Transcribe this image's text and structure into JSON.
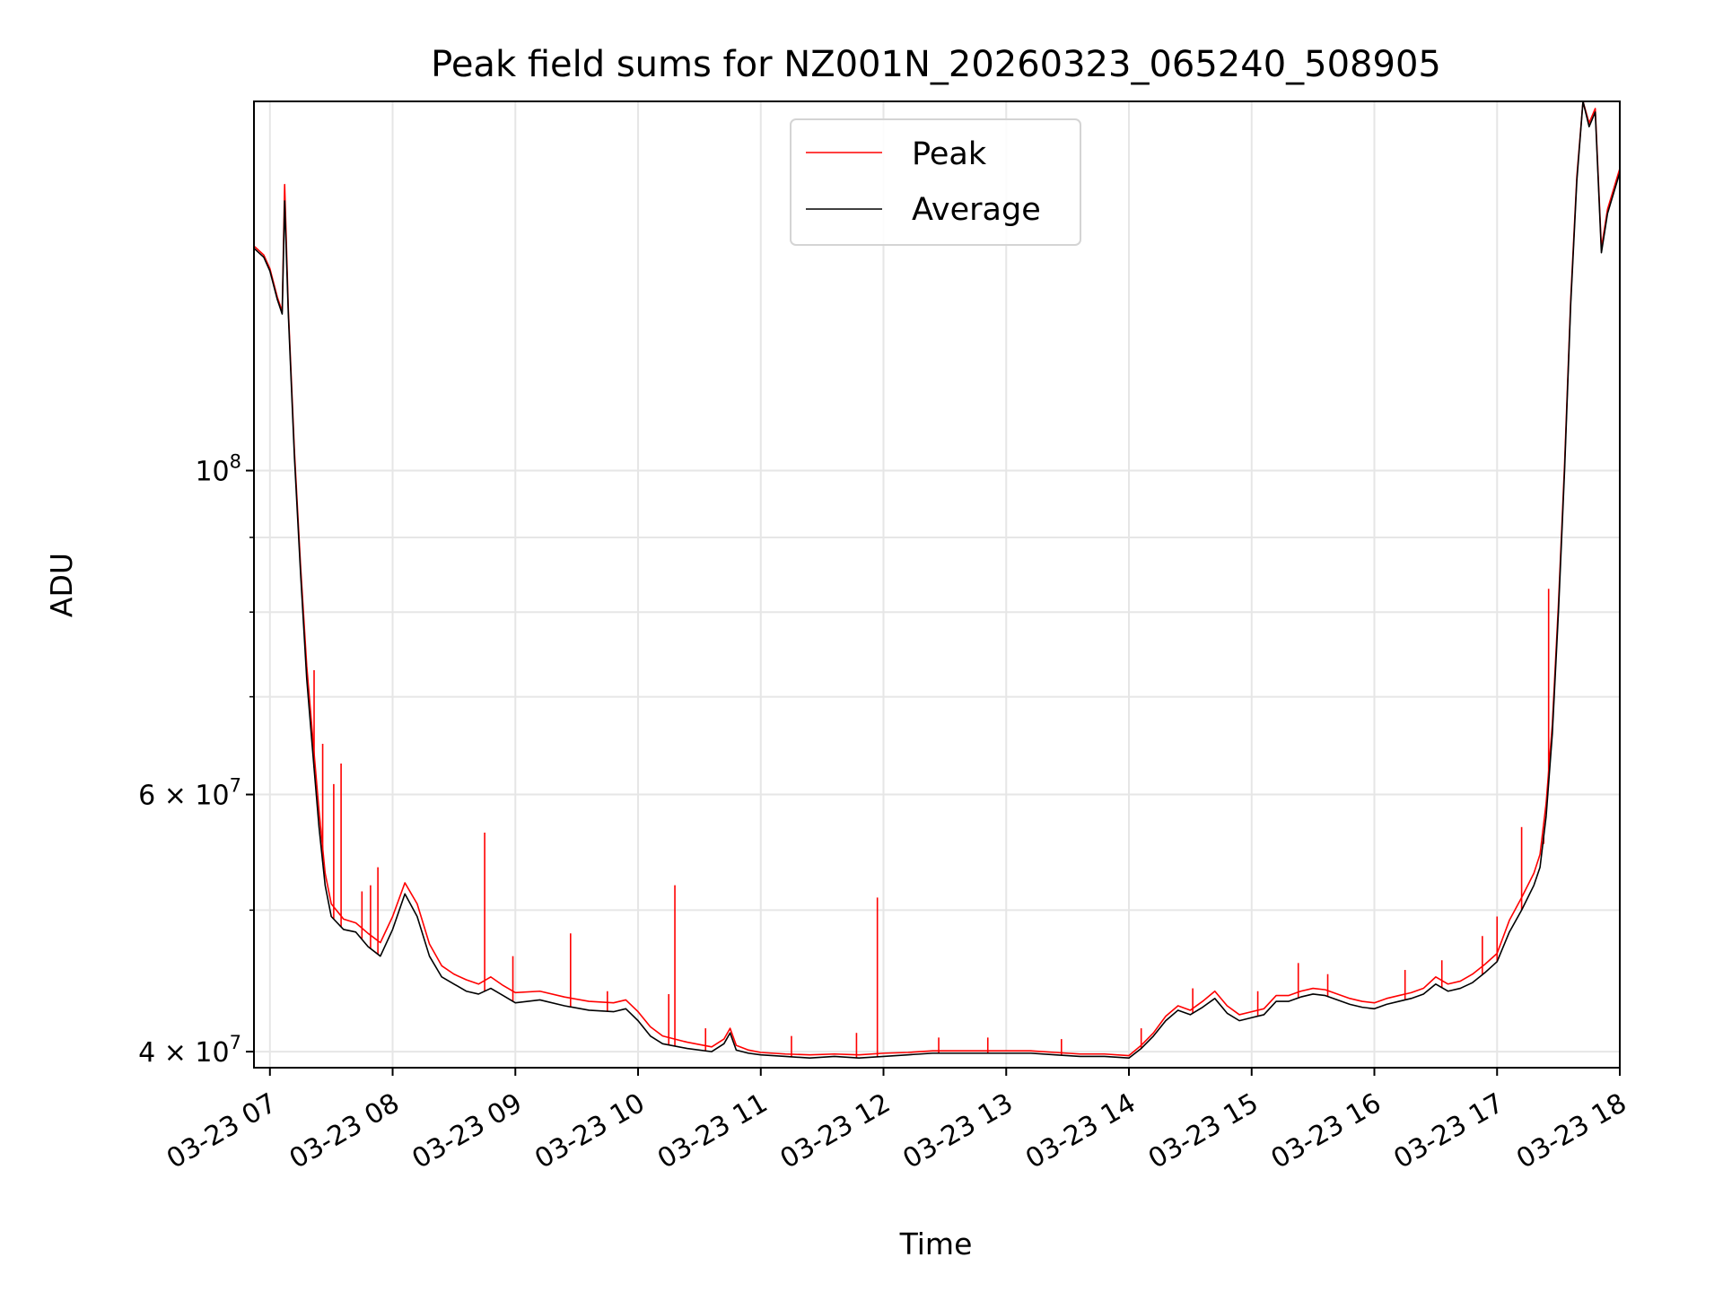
{
  "chart_data": {
    "type": "line",
    "title": "Peak field sums for NZ001N_20260323_065240_508905",
    "xlabel": "Time",
    "ylabel": "ADU",
    "yscale": "log",
    "xlim": [
      6.87,
      18.0
    ],
    "ylim": [
      39000000,
      179000000
    ],
    "grid": true,
    "legend_location": "upper center",
    "x_ticks": [
      {
        "value": 7,
        "label": "03-23 07"
      },
      {
        "value": 8,
        "label": "03-23 08"
      },
      {
        "value": 9,
        "label": "03-23 09"
      },
      {
        "value": 10,
        "label": "03-23 10"
      },
      {
        "value": 11,
        "label": "03-23 11"
      },
      {
        "value": 12,
        "label": "03-23 12"
      },
      {
        "value": 13,
        "label": "03-23 13"
      },
      {
        "value": 14,
        "label": "03-23 14"
      },
      {
        "value": 15,
        "label": "03-23 15"
      },
      {
        "value": 16,
        "label": "03-23 16"
      },
      {
        "value": 17,
        "label": "03-23 17"
      },
      {
        "value": 18,
        "label": "03-23 18"
      }
    ],
    "y_major_ticks": [
      {
        "value": 40000000,
        "mantissa": "4",
        "exponent": "7"
      },
      {
        "value": 60000000,
        "mantissa": "6",
        "exponent": "7"
      },
      {
        "value": 100000000,
        "mantissa": "10",
        "exponent": "8"
      }
    ],
    "y_minor_ticks": [
      50000000,
      70000000,
      80000000,
      90000000
    ],
    "x_unit": "hours (UTC) on 2026-03-23",
    "series": [
      {
        "name": "Average",
        "color": "#000000",
        "x": [
          6.87,
          6.95,
          7.0,
          7.06,
          7.1,
          7.12,
          7.15,
          7.2,
          7.25,
          7.3,
          7.35,
          7.4,
          7.45,
          7.5,
          7.6,
          7.7,
          7.8,
          7.9,
          8.0,
          8.1,
          8.2,
          8.3,
          8.4,
          8.5,
          8.6,
          8.7,
          8.8,
          8.9,
          9.0,
          9.2,
          9.4,
          9.6,
          9.8,
          9.9,
          10.0,
          10.1,
          10.2,
          10.4,
          10.6,
          10.7,
          10.75,
          10.8,
          10.9,
          11.0,
          11.2,
          11.4,
          11.6,
          11.8,
          12.0,
          12.2,
          12.4,
          12.6,
          12.8,
          13.0,
          13.2,
          13.4,
          13.6,
          13.8,
          14.0,
          14.1,
          14.2,
          14.3,
          14.4,
          14.5,
          14.6,
          14.7,
          14.8,
          14.9,
          15.0,
          15.1,
          15.2,
          15.3,
          15.4,
          15.5,
          15.6,
          15.7,
          15.8,
          15.9,
          16.0,
          16.1,
          16.2,
          16.3,
          16.4,
          16.5,
          16.6,
          16.7,
          16.8,
          16.9,
          17.0,
          17.1,
          17.2,
          17.3,
          17.35,
          17.4,
          17.45,
          17.5,
          17.55,
          17.6,
          17.65,
          17.7,
          17.75,
          17.8,
          17.85,
          17.9,
          18.0
        ],
        "values": [
          142000000,
          140000000,
          137000000,
          131000000,
          128000000,
          153000000,
          128000000,
          102000000,
          85000000,
          72000000,
          64000000,
          57000000,
          52000000,
          49500000,
          48500000,
          48300000,
          47200000,
          46500000,
          48500000,
          51300000,
          49500000,
          46500000,
          45000000,
          44500000,
          44000000,
          43800000,
          44200000,
          43700000,
          43200000,
          43400000,
          43000000,
          42700000,
          42600000,
          42800000,
          42000000,
          41000000,
          40500000,
          40200000,
          40000000,
          40500000,
          41200000,
          40100000,
          39900000,
          39800000,
          39700000,
          39600000,
          39700000,
          39600000,
          39700000,
          39800000,
          39900000,
          39900000,
          39900000,
          39900000,
          39900000,
          39800000,
          39700000,
          39700000,
          39600000,
          40200000,
          41000000,
          42000000,
          42700000,
          42400000,
          42900000,
          43500000,
          42500000,
          42000000,
          42200000,
          42400000,
          43300000,
          43300000,
          43600000,
          43800000,
          43700000,
          43400000,
          43100000,
          42900000,
          42800000,
          43100000,
          43300000,
          43500000,
          43800000,
          44500000,
          44000000,
          44200000,
          44600000,
          45300000,
          46100000,
          48300000,
          50000000,
          52000000,
          53500000,
          58000000,
          66000000,
          80000000,
          100000000,
          130000000,
          158000000,
          180000000,
          172000000,
          176000000,
          141000000,
          150000000,
          160000000
        ]
      },
      {
        "name": "Peak",
        "color": "#ff0000",
        "x": [
          6.87,
          6.95,
          7.0,
          7.06,
          7.1,
          7.12,
          7.15,
          7.2,
          7.25,
          7.3,
          7.35,
          7.4,
          7.45,
          7.5,
          7.6,
          7.7,
          7.8,
          7.9,
          8.0,
          8.1,
          8.2,
          8.3,
          8.4,
          8.5,
          8.6,
          8.7,
          8.8,
          8.9,
          9.0,
          9.2,
          9.4,
          9.6,
          9.8,
          9.9,
          10.0,
          10.1,
          10.2,
          10.4,
          10.6,
          10.7,
          10.75,
          10.8,
          10.9,
          11.0,
          11.2,
          11.4,
          11.6,
          11.8,
          12.0,
          12.2,
          12.4,
          12.6,
          12.8,
          13.0,
          13.2,
          13.4,
          13.6,
          13.8,
          14.0,
          14.1,
          14.2,
          14.3,
          14.4,
          14.5,
          14.6,
          14.7,
          14.8,
          14.9,
          15.0,
          15.1,
          15.2,
          15.3,
          15.4,
          15.5,
          15.6,
          15.7,
          15.8,
          15.9,
          16.0,
          16.1,
          16.2,
          16.3,
          16.4,
          16.5,
          16.6,
          16.7,
          16.8,
          16.9,
          17.0,
          17.1,
          17.2,
          17.3,
          17.35,
          17.4,
          17.45,
          17.5,
          17.55,
          17.6,
          17.65,
          17.7,
          17.75,
          17.8,
          17.85,
          17.9,
          18.0
        ],
        "values": [
          142500000,
          140500000,
          137500000,
          131500000,
          128500000,
          157000000,
          129000000,
          103000000,
          86000000,
          73500000,
          65500000,
          58500000,
          53000000,
          50500000,
          49300000,
          49000000,
          48200000,
          47500000,
          49500000,
          52200000,
          50500000,
          47400000,
          45800000,
          45200000,
          44800000,
          44500000,
          45000000,
          44400000,
          43900000,
          44000000,
          43600000,
          43300000,
          43200000,
          43400000,
          42600000,
          41600000,
          41000000,
          40600000,
          40300000,
          40800000,
          41500000,
          40400000,
          40100000,
          39950000,
          39850000,
          39800000,
          39850000,
          39800000,
          39900000,
          39950000,
          40050000,
          40050000,
          40050000,
          40050000,
          40050000,
          39950000,
          39850000,
          39850000,
          39750000,
          40400000,
          41200000,
          42300000,
          43000000,
          42700000,
          43300000,
          44000000,
          43000000,
          42400000,
          42600000,
          42800000,
          43700000,
          43700000,
          44000000,
          44200000,
          44100000,
          43800000,
          43500000,
          43300000,
          43200000,
          43500000,
          43700000,
          43900000,
          44200000,
          45000000,
          44500000,
          44700000,
          45200000,
          45900000,
          46700000,
          49200000,
          51000000,
          53000000,
          54600000,
          59200000,
          67000000,
          81000000,
          101000000,
          131000000,
          159000000,
          181000000,
          173000000,
          177000000,
          142000000,
          151000000,
          161000000
        ],
        "spikes": [
          {
            "x": 7.36,
            "value": 73000000
          },
          {
            "x": 7.43,
            "value": 65000000
          },
          {
            "x": 7.52,
            "value": 61000000
          },
          {
            "x": 7.58,
            "value": 63000000
          },
          {
            "x": 7.75,
            "value": 51500000
          },
          {
            "x": 7.82,
            "value": 52000000
          },
          {
            "x": 7.88,
            "value": 53500000
          },
          {
            "x": 8.75,
            "value": 56500000
          },
          {
            "x": 8.98,
            "value": 46500000
          },
          {
            "x": 9.45,
            "value": 48200000
          },
          {
            "x": 9.75,
            "value": 44000000
          },
          {
            "x": 10.25,
            "value": 43800000
          },
          {
            "x": 10.3,
            "value": 52000000
          },
          {
            "x": 10.55,
            "value": 41500000
          },
          {
            "x": 11.25,
            "value": 41000000
          },
          {
            "x": 11.78,
            "value": 41200000
          },
          {
            "x": 11.95,
            "value": 51000000
          },
          {
            "x": 12.45,
            "value": 40900000
          },
          {
            "x": 12.85,
            "value": 40900000
          },
          {
            "x": 13.45,
            "value": 40800000
          },
          {
            "x": 14.1,
            "value": 41500000
          },
          {
            "x": 14.52,
            "value": 44200000
          },
          {
            "x": 15.05,
            "value": 44000000
          },
          {
            "x": 15.38,
            "value": 46000000
          },
          {
            "x": 15.62,
            "value": 45200000
          },
          {
            "x": 16.25,
            "value": 45500000
          },
          {
            "x": 16.55,
            "value": 46200000
          },
          {
            "x": 16.88,
            "value": 48000000
          },
          {
            "x": 17.0,
            "value": 49500000
          },
          {
            "x": 17.2,
            "value": 57000000
          },
          {
            "x": 17.38,
            "value": 55500000
          },
          {
            "x": 17.42,
            "value": 83000000
          }
        ]
      }
    ],
    "legend": [
      {
        "label": "Peak",
        "color": "#ff0000"
      },
      {
        "label": "Average",
        "color": "#000000"
      }
    ]
  }
}
